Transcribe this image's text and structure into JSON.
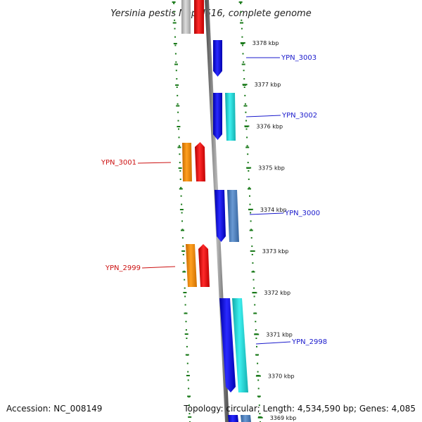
{
  "title": "Yersinia pestis Nepal516, complete genome",
  "accession": "Accession: NC_008149",
  "topology": "Topology: circular; Length: 4,534,590 bp; Genes: 4,085",
  "colors": {
    "backbone": "#888888",
    "ticks": "#1a7a1a",
    "forward_label": "#1a1acc",
    "reverse_label": "#cc1111",
    "blue": "#1010e0",
    "cyan": "#22d8d8",
    "steelblue": "#4a7ec0",
    "red": "#ee1111",
    "orange": "#f08c00",
    "gray": "#bbbbbb"
  },
  "ruler": {
    "unit": "kbp",
    "ticks": [
      {
        "label": "3378 kbp"
      },
      {
        "label": "3377 kbp"
      },
      {
        "label": "3376 kbp"
      },
      {
        "label": "3375 kbp"
      },
      {
        "label": "3374 kbp"
      },
      {
        "label": "3373 kbp"
      },
      {
        "label": "3372 kbp"
      },
      {
        "label": "3371 kbp"
      },
      {
        "label": "3370 kbp"
      },
      {
        "label": "3369 kbp"
      }
    ]
  },
  "genes": [
    {
      "label": "YPN_3003",
      "strand": "forward"
    },
    {
      "label": "YPN_3002",
      "strand": "forward"
    },
    {
      "label": "YPN_3001",
      "strand": "reverse"
    },
    {
      "label": "YPN_3000",
      "strand": "forward"
    },
    {
      "label": "YPN_2999",
      "strand": "reverse"
    },
    {
      "label": "YPN_2998",
      "strand": "forward"
    }
  ]
}
